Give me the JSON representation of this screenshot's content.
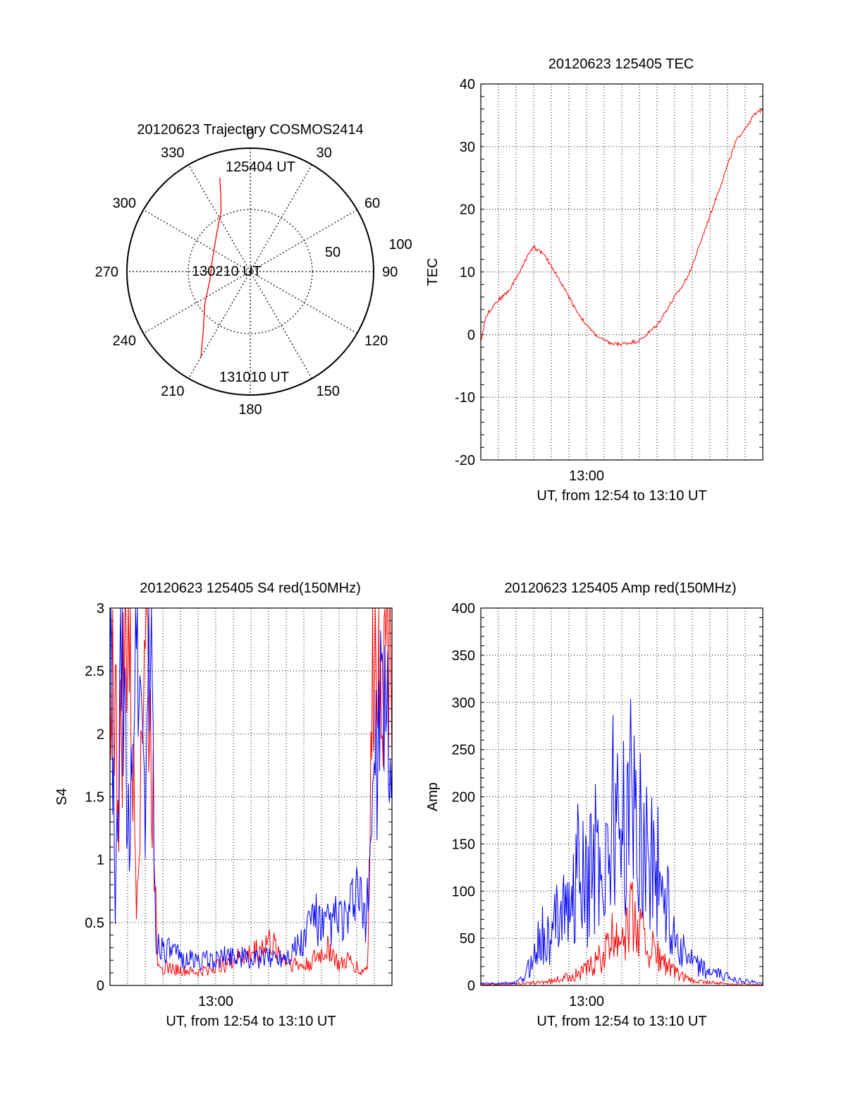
{
  "chart_data": [
    {
      "id": "polar",
      "type": "scatter",
      "title": "20120623 Trajectory COSMOS2414",
      "coordinate_system": "polar",
      "azimuth_labels": [
        "0",
        "30",
        "60",
        "90",
        "120",
        "150",
        "180",
        "210",
        "240",
        "270",
        "300",
        "330"
      ],
      "radial_labels": [
        "50",
        "100"
      ],
      "radial_range": [
        0,
        100
      ],
      "series": [
        {
          "color": "#ff0000",
          "points_az_zen": [
            [
              -18,
              80
            ],
            [
              -21,
              67
            ],
            [
              -26,
              54
            ],
            [
              -40,
              42
            ],
            [
              -75,
              32
            ],
            [
              -100,
              33
            ],
            [
              -125,
              45
            ],
            [
              -142,
              62
            ],
            [
              -150,
              80
            ]
          ]
        }
      ],
      "annotations": [
        {
          "text": "125404 UT",
          "az": -18,
          "zen": 80
        },
        {
          "text": "130210 UT",
          "az": -88,
          "zen": 20
        },
        {
          "text": "131010 UT",
          "az": -150,
          "zen": 80
        }
      ],
      "grid": true
    },
    {
      "id": "tec",
      "type": "line",
      "title": "20120623 125405 TEC",
      "ylabel": "TEC",
      "xlabel": "UT, from 12:54 to 13:10 UT",
      "xtick_labels": [
        "13:00"
      ],
      "xlim": [
        0,
        16
      ],
      "ylim": [
        -20,
        40
      ],
      "yticks": [
        -20,
        -10,
        0,
        10,
        20,
        30,
        40
      ],
      "grid": true,
      "series": [
        {
          "color": "#ff0000",
          "x": [
            0,
            0.3,
            0.8,
            1.2,
            1.6,
            2.0,
            2.4,
            2.7,
            3.0,
            3.5,
            4.0,
            5.0,
            5.5,
            6.0,
            6.5,
            7.0,
            7.5,
            8.0,
            9.0,
            10.0,
            11.0,
            11.5,
            12.0,
            12.5,
            13.0,
            13.5,
            14.0,
            14.5,
            15.0,
            15.5,
            16.0
          ],
          "y": [
            -1,
            3,
            5,
            6,
            7,
            9,
            11,
            13,
            14,
            13,
            11,
            6,
            3.5,
            1.5,
            0,
            -1,
            -1.5,
            -1.5,
            -1,
            1.5,
            6,
            8,
            11,
            15,
            19,
            23,
            27,
            31,
            33,
            35,
            36
          ]
        }
      ]
    },
    {
      "id": "s4",
      "type": "line",
      "title": "20120623 125405 S4 red(150MHz)",
      "ylabel": "S4",
      "xlabel": "UT, from 12:54 to 13:10 UT",
      "xtick_labels": [
        "13:00"
      ],
      "xlim": [
        0,
        16
      ],
      "ylim": [
        0,
        3
      ],
      "yticks": [
        0,
        0.5,
        1,
        1.5,
        2,
        2.5,
        3
      ],
      "grid": true,
      "series": [
        {
          "color": "#ff0000",
          "x": [
            0,
            0.5,
            1.0,
            1.5,
            2.0,
            2.5,
            2.7,
            3.0,
            4.0,
            5.0,
            6.0,
            7.0,
            8.0,
            8.5,
            9.0,
            10.0,
            11.0,
            11.5,
            12.0,
            12.5,
            13.0,
            13.5,
            14.0,
            14.2,
            14.6,
            15.0,
            15.5,
            16.0
          ],
          "y": [
            3,
            1.5,
            3,
            0.8,
            3,
            1.2,
            0.22,
            0.15,
            0.12,
            0.1,
            0.15,
            0.2,
            0.25,
            0.3,
            0.35,
            0.2,
            0.15,
            0.2,
            0.25,
            0.3,
            0.15,
            0.2,
            0.15,
            0.1,
            0.15,
            3,
            2.8,
            3
          ]
        },
        {
          "color": "#0000ff",
          "x": [
            0,
            0.3,
            0.7,
            1.0,
            1.5,
            2.0,
            2.3,
            2.6,
            2.8,
            3.0,
            4.0,
            5.0,
            6.0,
            7.0,
            8.0,
            9.0,
            10.0,
            11.0,
            11.5,
            12.0,
            12.5,
            13.0,
            13.5,
            14.0,
            14.5,
            15.0,
            15.5,
            16.0
          ],
          "y": [
            3,
            0.5,
            3,
            1.0,
            3,
            1.5,
            3,
            0.3,
            0.35,
            0.3,
            0.22,
            0.2,
            0.2,
            0.25,
            0.2,
            0.22,
            0.25,
            0.35,
            0.6,
            0.45,
            0.5,
            0.55,
            0.5,
            0.8,
            0.45,
            1.8,
            2.2,
            1.6
          ]
        }
      ]
    },
    {
      "id": "amp",
      "type": "line",
      "title": "20120623 125405 Amp red(150MHz)",
      "ylabel": "Amp",
      "xlabel": "UT, from 12:54 to 13:10 UT",
      "xtick_labels": [
        "13:00"
      ],
      "xlim": [
        0,
        16
      ],
      "ylim": [
        0,
        400
      ],
      "yticks": [
        0,
        50,
        100,
        150,
        200,
        250,
        300,
        350,
        400
      ],
      "grid": true,
      "series": [
        {
          "color": "#ff0000",
          "x": [
            0,
            2,
            3,
            4,
            5,
            6,
            7,
            7.5,
            8,
            8.5,
            9,
            9.5,
            10,
            11,
            12,
            14,
            16
          ],
          "y": [
            1,
            2,
            3,
            5,
            10,
            18,
            35,
            55,
            70,
            80,
            65,
            50,
            35,
            15,
            5,
            2,
            1
          ]
        },
        {
          "color": "#0000ff",
          "x": [
            0,
            2,
            2.5,
            3,
            3.5,
            4,
            4.5,
            5,
            5.5,
            6,
            6.5,
            7,
            7.5,
            8,
            8.5,
            9,
            9.5,
            10,
            10.5,
            11,
            11.5,
            12,
            13,
            14,
            15,
            16
          ],
          "y": [
            2,
            3,
            10,
            35,
            60,
            45,
            120,
            80,
            140,
            110,
            160,
            130,
            200,
            180,
            210,
            190,
            160,
            140,
            100,
            60,
            40,
            25,
            15,
            10,
            5,
            2
          ]
        }
      ]
    }
  ]
}
